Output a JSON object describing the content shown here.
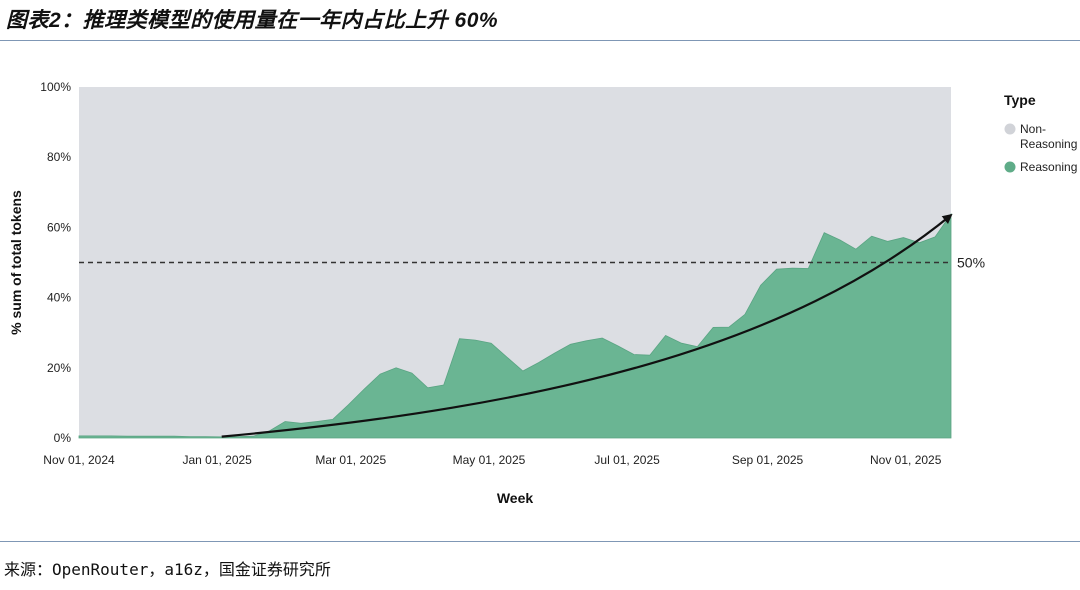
{
  "header": {
    "title": "图表2：推理类模型的使用量在一年内占比上升 60%"
  },
  "footer": {
    "source": "来源：OpenRouter，a16z，国金证券研究所"
  },
  "chart_data": {
    "type": "area",
    "title": "",
    "xlabel": "Week",
    "ylabel": "% sum of total tokens",
    "ylim": [
      0,
      100
    ],
    "y_ticks": [
      "0%",
      "20%",
      "40%",
      "60%",
      "80%",
      "100%"
    ],
    "x_ticks": [
      "Nov 01, 2024",
      "Jan 01, 2025",
      "Mar 01, 2025",
      "May 01, 2025",
      "Jul 01, 2025",
      "Sep 01, 2025",
      "Nov 01, 2025"
    ],
    "legend": {
      "title": "Type",
      "position": "right",
      "items": [
        {
          "label": "Non-Reasoning",
          "lines": [
            "Non-",
            "Reasoning"
          ],
          "color": "#d1d3d8"
        },
        {
          "label": "Reasoning",
          "lines": [
            "Reasoning"
          ],
          "color": "#5fac88"
        }
      ]
    },
    "background_color": "#dcdee3",
    "series": [
      {
        "name": "Reasoning",
        "color": "#6ab593",
        "x": [
          "2024-11-01",
          "2024-11-08",
          "2024-11-15",
          "2024-11-22",
          "2024-11-29",
          "2024-12-06",
          "2024-12-13",
          "2024-12-20",
          "2024-12-27",
          "2025-01-03",
          "2025-01-10",
          "2025-01-17",
          "2025-01-24",
          "2025-01-31",
          "2025-02-07",
          "2025-02-14",
          "2025-02-21",
          "2025-02-28",
          "2025-03-07",
          "2025-03-14",
          "2025-03-21",
          "2025-03-28",
          "2025-04-04",
          "2025-04-11",
          "2025-04-18",
          "2025-04-25",
          "2025-05-02",
          "2025-05-09",
          "2025-05-16",
          "2025-05-23",
          "2025-05-30",
          "2025-06-06",
          "2025-06-13",
          "2025-06-20",
          "2025-06-27",
          "2025-07-04",
          "2025-07-11",
          "2025-07-18",
          "2025-07-25",
          "2025-08-01",
          "2025-08-08",
          "2025-08-15",
          "2025-08-22",
          "2025-08-29",
          "2025-09-05",
          "2025-09-12",
          "2025-09-19",
          "2025-09-26",
          "2025-10-03",
          "2025-10-10",
          "2025-10-17",
          "2025-10-24",
          "2025-10-31",
          "2025-11-07",
          "2025-11-14",
          "2025-11-21"
        ],
        "values": [
          0.6,
          0.6,
          0.6,
          0.5,
          0.5,
          0.5,
          0.5,
          0.4,
          0.4,
          0.3,
          0.4,
          0.5,
          2,
          4.7,
          4.2,
          4.7,
          5.3,
          9.5,
          14,
          18.2,
          20,
          18.5,
          14.3,
          15.1,
          28.3,
          27.9,
          27,
          23,
          19.1,
          21.5,
          24.2,
          26.7,
          27.7,
          28.5,
          26.2,
          23.8,
          23.6,
          29.2,
          27,
          26,
          31.5,
          31.6,
          35.2,
          43.5,
          48.1,
          48.4,
          48.3,
          58.5,
          56.4,
          53.8,
          57.5,
          56,
          57.1,
          55.6,
          57.3,
          63.8
        ]
      }
    ],
    "reference_line": {
      "y": 50,
      "label": "50%",
      "style": "dashed"
    },
    "trend_arrow": {
      "x_start": "2025-01-03",
      "y_start": 0.4,
      "x_end": "2025-11-21",
      "y_end": 63.5
    }
  }
}
